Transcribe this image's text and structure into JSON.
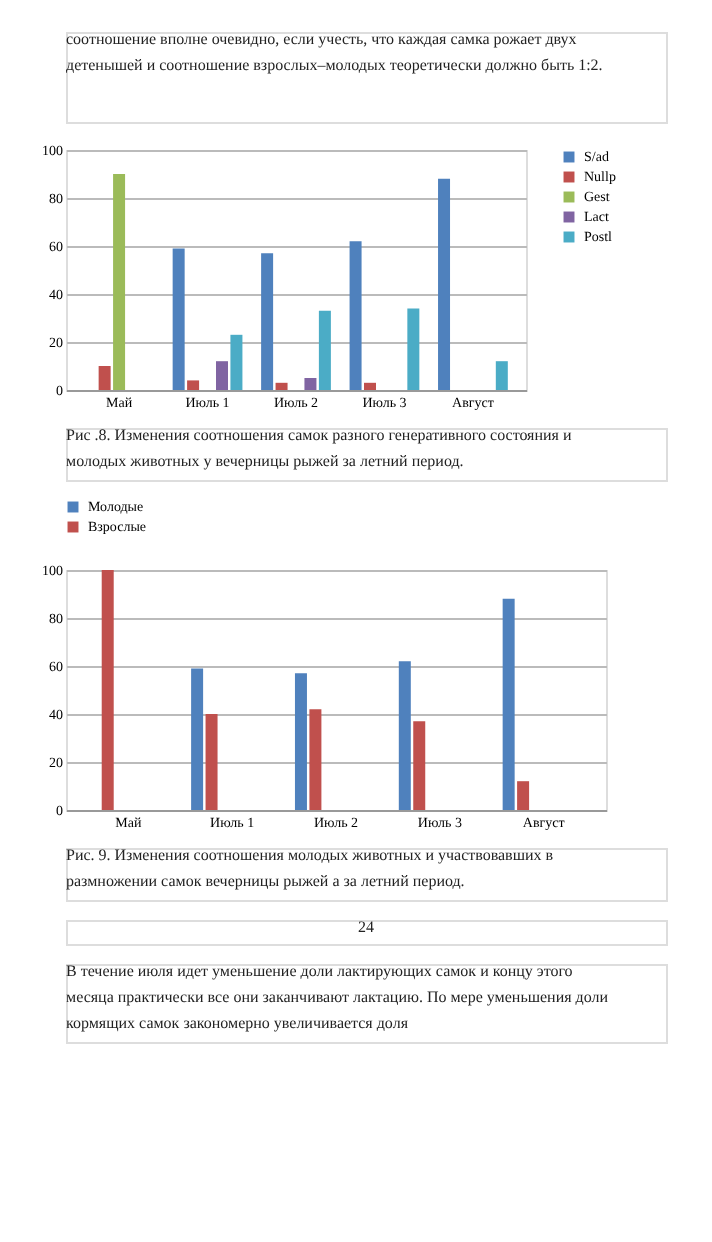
{
  "chart_data": [
    {
      "type": "bar",
      "categories": [
        "Май",
        "Июль 1",
        "Июль 2",
        "Июль 3",
        "Август"
      ],
      "ylim": [
        0,
        100
      ],
      "yticks": [
        0,
        20,
        40,
        60,
        80,
        100
      ],
      "grid": "y",
      "legend": "right",
      "series": [
        {
          "name": "S/ad",
          "color": "#4f81bd",
          "values": [
            0,
            59,
            57,
            62,
            88
          ]
        },
        {
          "name": "Nullp",
          "color": "#c0504d",
          "values": [
            10,
            4,
            3,
            3,
            0
          ]
        },
        {
          "name": "Gest",
          "color": "#9bbb59",
          "values": [
            90,
            0,
            0,
            0,
            0
          ]
        },
        {
          "name": "Lact",
          "color": "#8064a2",
          "values": [
            0,
            12,
            5,
            0,
            0
          ]
        },
        {
          "name": "Postl",
          "color": "#4bacc6",
          "values": [
            0,
            23,
            33,
            34,
            12
          ]
        }
      ],
      "annotations": [
        "соотношение вполне очевидно, если учесть, что каждая самка рожает двух детенышей и соотношение взрослых–молодых теоретически должно быть 1:2.",
        "Рис .8. Изменения соотношения самок разного генеративного состояния и молодых животных у вечерницы рыжей за летний период."
      ]
    },
    {
      "type": "bar",
      "categories": [
        "Май",
        "Июль 1",
        "Июль 2",
        "Июль 3",
        "Август"
      ],
      "ylim": [
        0,
        100
      ],
      "yticks": [
        0,
        20,
        40,
        60,
        80,
        100
      ],
      "grid": "y",
      "legend": "top",
      "series": [
        {
          "name": "Молодые",
          "color": "#4f81bd",
          "values": [
            0,
            59,
            57,
            62,
            88
          ]
        },
        {
          "name": "Взрослые",
          "color": "#c0504d",
          "values": [
            100,
            40,
            42,
            37,
            12
          ]
        }
      ],
      "annotations": [
        "Рис. 9. Изменения соотношения молодых животных и участвовавших в размножении самок вечерницы рыжей а за летний период.",
        "24",
        "В течение июля идет уменьшение доли лактирующих самок и концу этого месяца практически все они заканчивают лактацию. По мере уменьшения доли кормящих самок закономерно увеличивается доля"
      ]
    }
  ]
}
